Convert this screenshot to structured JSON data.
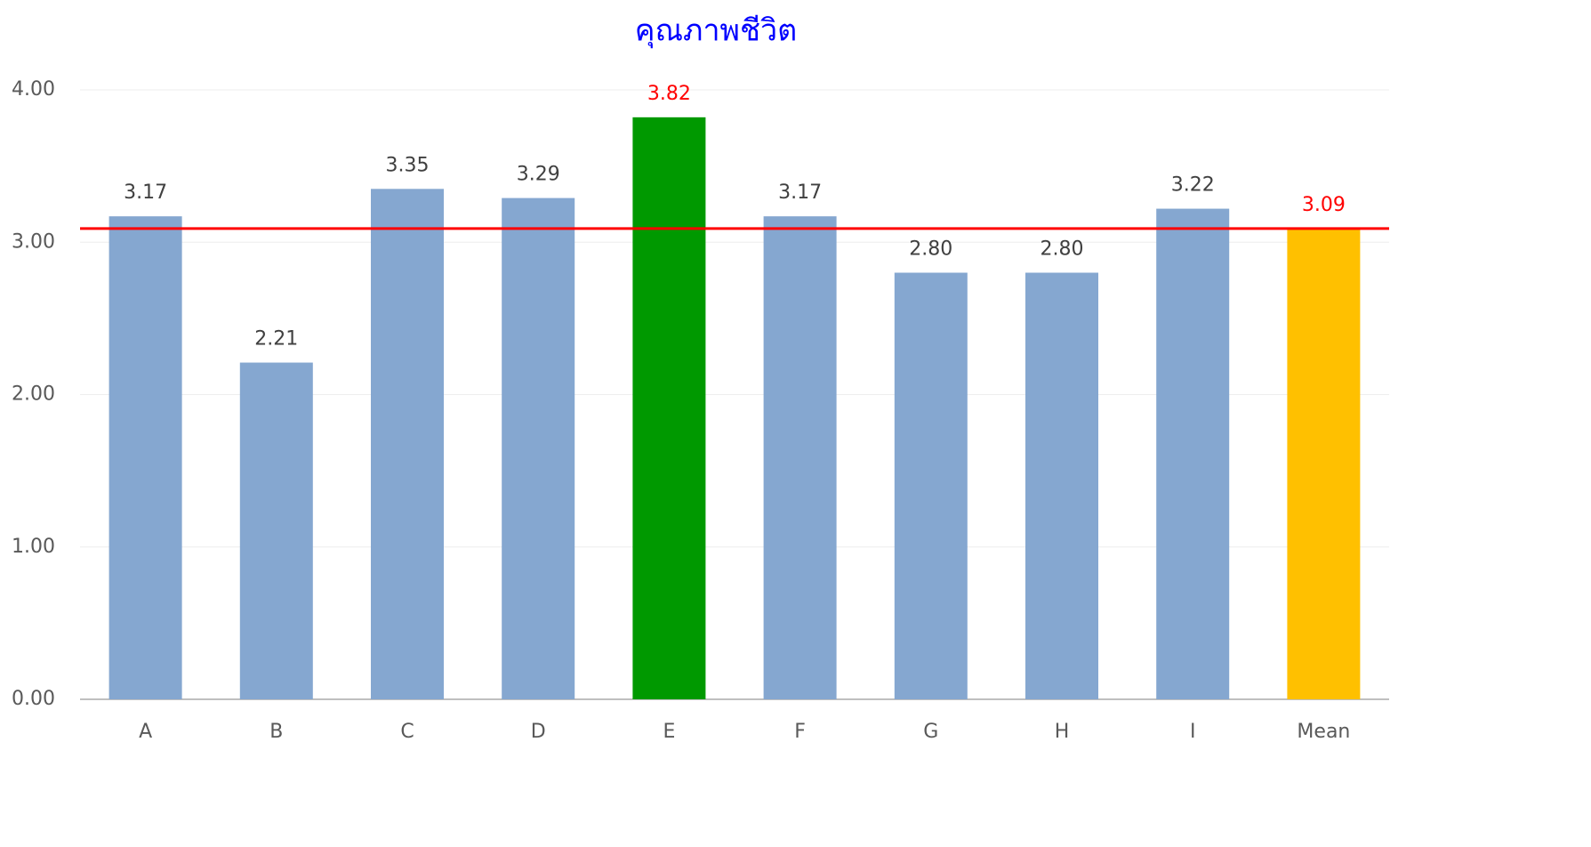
{
  "chart_data": {
    "type": "bar",
    "title": "คุณภาพชีวิต",
    "categories": [
      "A",
      "B",
      "C",
      "D",
      "E",
      "F",
      "G",
      "H",
      "I",
      "Mean"
    ],
    "values": [
      3.17,
      2.21,
      3.35,
      3.29,
      3.82,
      3.17,
      2.8,
      2.8,
      3.22,
      3.09
    ],
    "value_labels": [
      "3.17",
      "2.21",
      "3.35",
      "3.29",
      "3.82",
      "3.17",
      "2.80",
      "2.80",
      "3.22",
      "3.09"
    ],
    "colors": [
      "#85a7d0",
      "#85a7d0",
      "#85a7d0",
      "#85a7d0",
      "#009900",
      "#85a7d0",
      "#85a7d0",
      "#85a7d0",
      "#85a7d0",
      "#ffc000"
    ],
    "label_colors": [
      "#404040",
      "#404040",
      "#404040",
      "#404040",
      "#ff0000",
      "#404040",
      "#404040",
      "#404040",
      "#404040",
      "#ff0000"
    ],
    "reference_line": {
      "value": 3.09,
      "color": "#ff0000"
    },
    "ylim": [
      0,
      4
    ],
    "yticks": [
      {
        "value": 0,
        "label": "0.00"
      },
      {
        "value": 1,
        "label": "1.00"
      },
      {
        "value": 2,
        "label": "2.00"
      },
      {
        "value": 3,
        "label": "3.00"
      },
      {
        "value": 4,
        "label": "4.00"
      }
    ],
    "grid": true
  }
}
